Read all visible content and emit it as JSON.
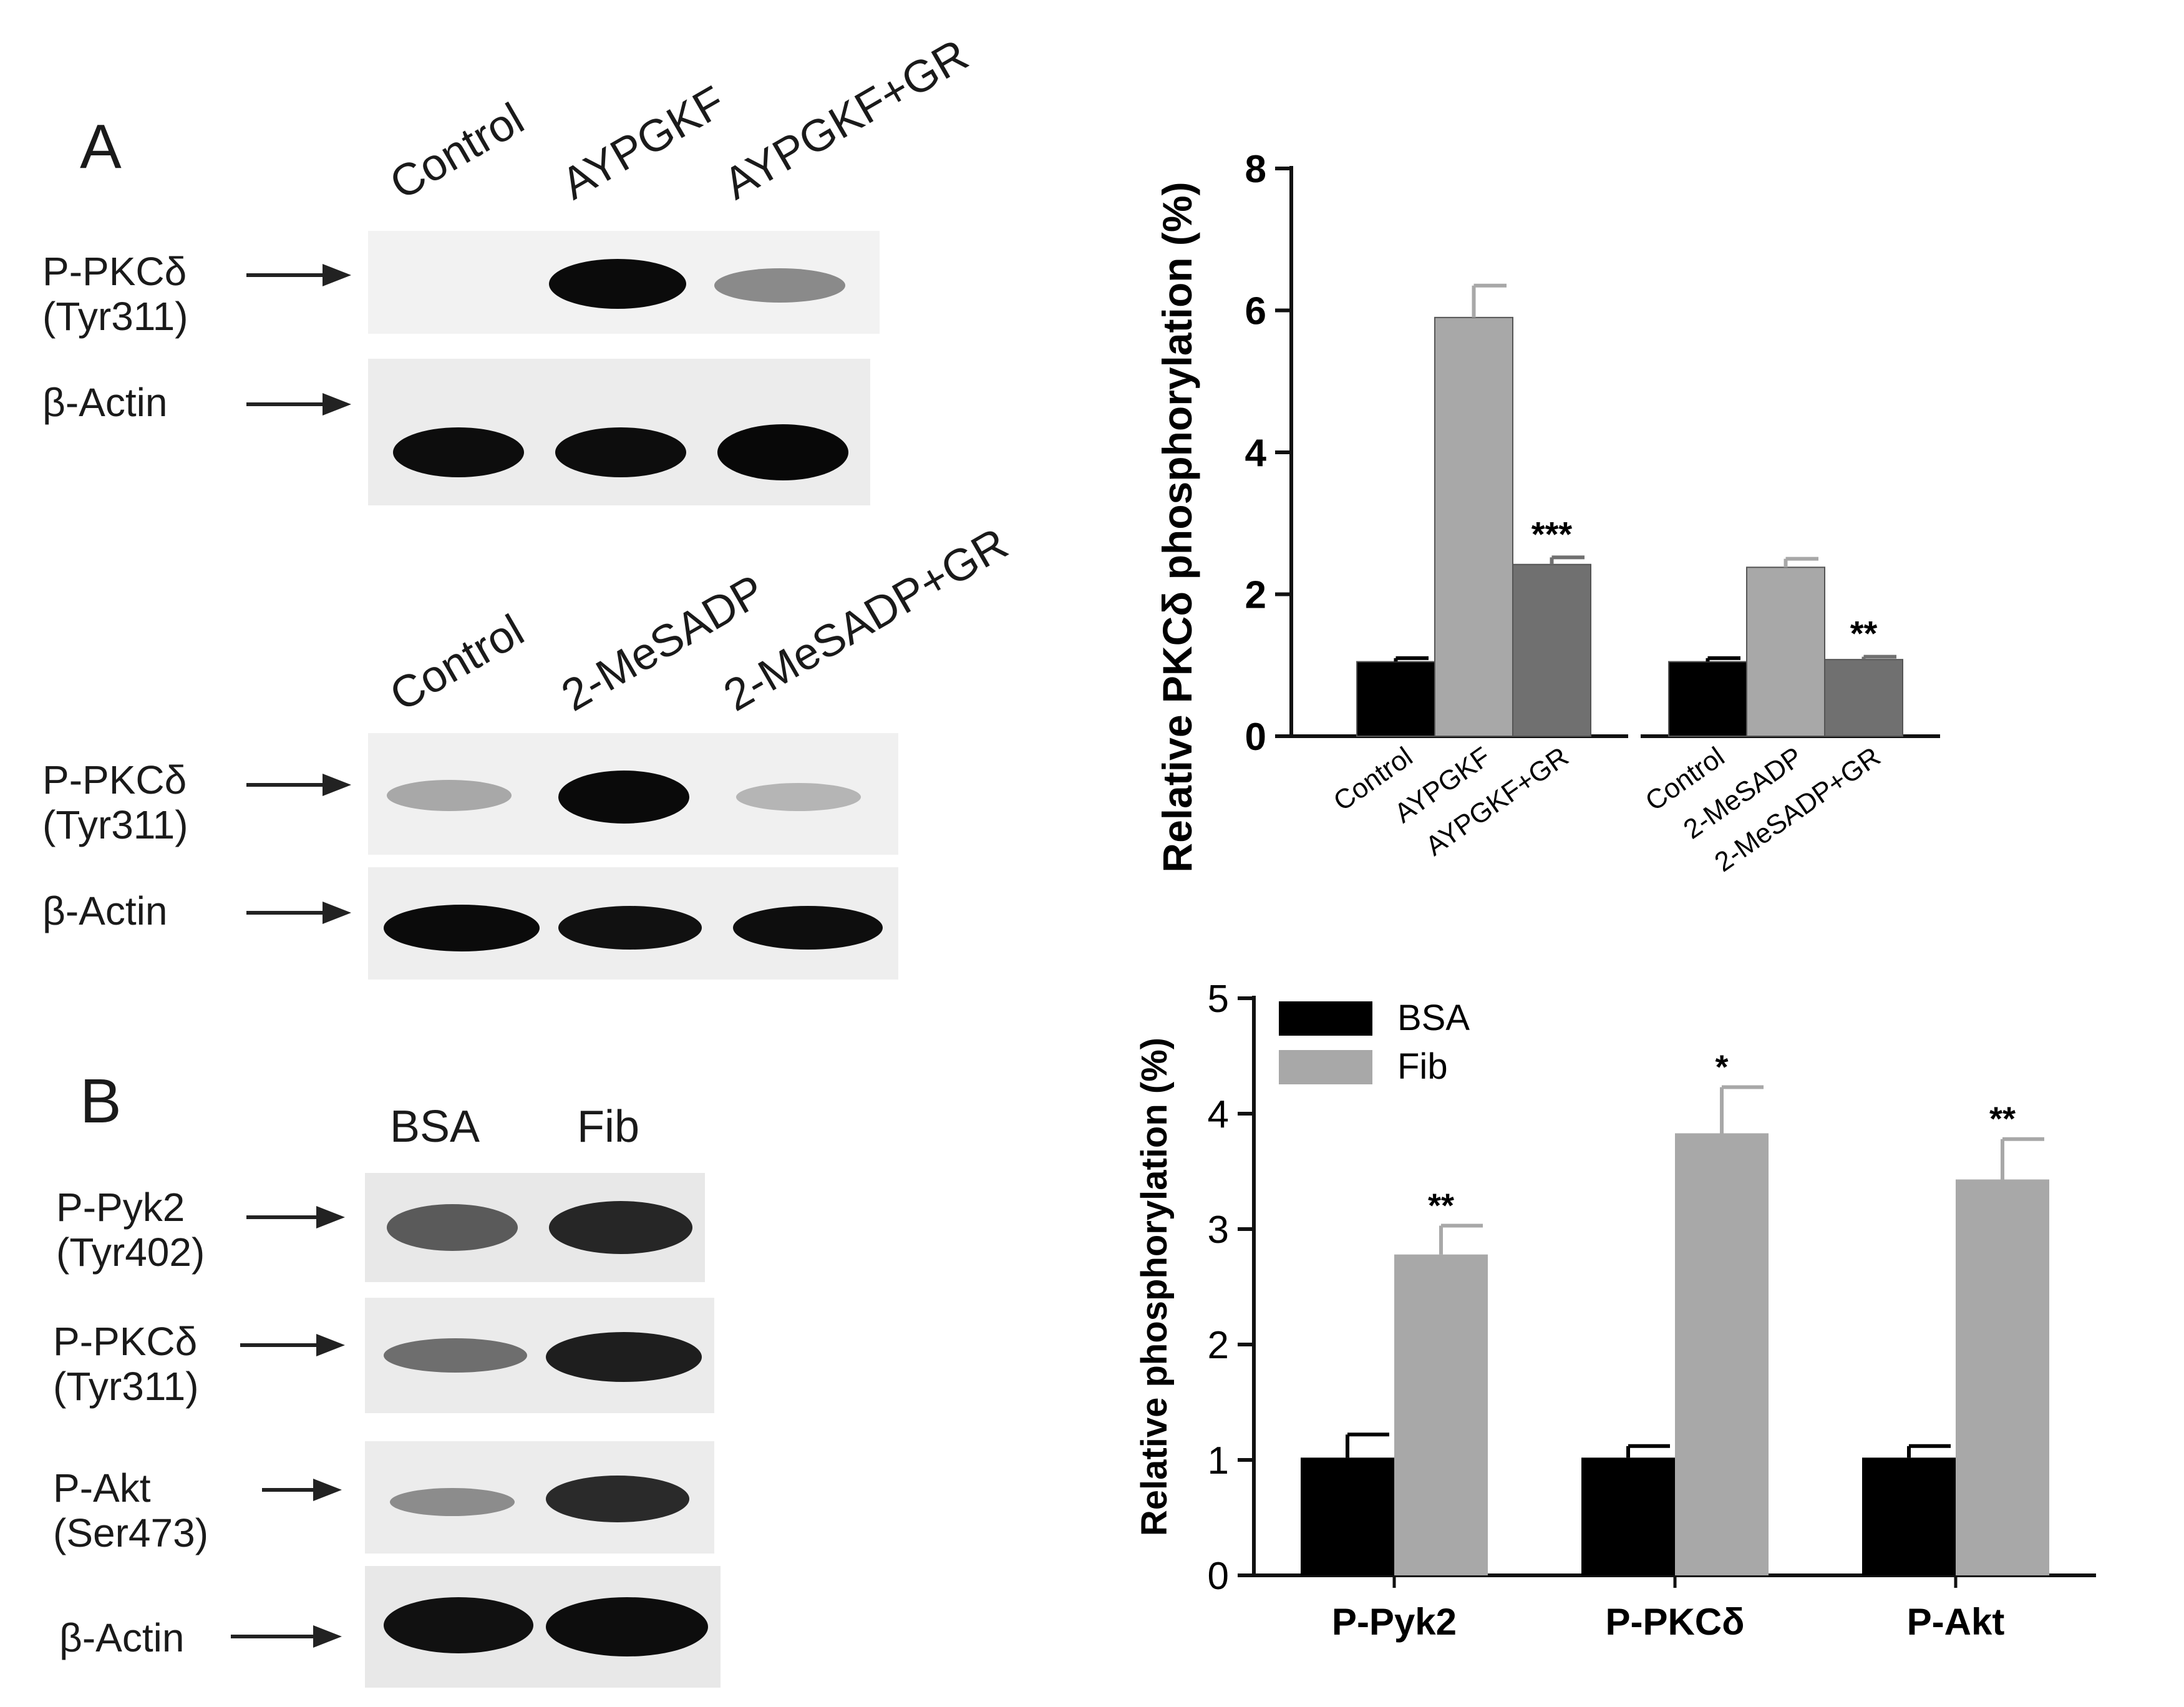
{
  "panel_a": {
    "letter": "A",
    "blot1": {
      "lanes": [
        "Control",
        "AYPGKF",
        "AYPGKF+GR"
      ],
      "rows": [
        {
          "label_line1": "P-PKCδ",
          "label_line2": "(Tyr311)"
        },
        {
          "label_line1": "β-Actin",
          "label_line2": ""
        }
      ]
    },
    "blot2": {
      "lanes": [
        "Control",
        "2-MeSADP",
        "2-MeSADP+GR"
      ],
      "rows": [
        {
          "label_line1": "P-PKCδ",
          "label_line2": "(Tyr311)"
        },
        {
          "label_line1": "β-Actin",
          "label_line2": ""
        }
      ]
    }
  },
  "panel_b": {
    "letter": "B",
    "lanes": [
      "BSA",
      "Fib"
    ],
    "rows": [
      {
        "label_line1": "P-Pyk2",
        "label_line2": "(Tyr402)"
      },
      {
        "label_line1": "P-PKCδ",
        "label_line2": "(Tyr311)"
      },
      {
        "label_line1": "P-Akt",
        "label_line2": "(Ser473)"
      },
      {
        "label_line1": "β-Actin",
        "label_line2": ""
      }
    ]
  },
  "chart_data": [
    {
      "type": "bar",
      "title": "",
      "xlabel": "",
      "ylabel": "Relative PKCδ phosphorylation (%)",
      "ylim": [
        0,
        8
      ],
      "yticks": [
        0,
        2,
        4,
        6,
        8
      ],
      "categories": [
        "Control",
        "AYPGKF",
        "AYPGKF+GR",
        "Control",
        "2-MeSADP",
        "2-MeSADP+GR"
      ],
      "values": [
        1.05,
        5.9,
        2.42,
        1.05,
        2.38,
        1.08
      ],
      "errors": [
        0.05,
        0.45,
        0.1,
        0.05,
        0.12,
        0.04
      ],
      "annotations": [
        "",
        "",
        "***",
        "",
        "",
        "**"
      ],
      "bar_colors": [
        "#000000",
        "#a8a8a8",
        "#707070",
        "#000000",
        "#a8a8a8",
        "#707070"
      ],
      "grid": false,
      "legend": "none"
    },
    {
      "type": "bar",
      "title": "",
      "xlabel": "",
      "ylabel": "Relative phosphorylation (%)",
      "ylim": [
        0,
        5
      ],
      "yticks": [
        0,
        1,
        2,
        3,
        4,
        5
      ],
      "categories": [
        "P-Pyk2",
        "P-PKCδ",
        "P-Akt"
      ],
      "series": [
        {
          "name": "BSA",
          "color": "#000000",
          "values": [
            1.02,
            1.02,
            1.02
          ],
          "errors": [
            0.2,
            0.1,
            0.1
          ]
        },
        {
          "name": "Fib",
          "color": "#a8a8a8",
          "values": [
            2.78,
            3.83,
            3.43
          ],
          "errors": [
            0.25,
            0.4,
            0.35
          ]
        }
      ],
      "annotations": [
        "**",
        "*",
        "**"
      ],
      "grid": false,
      "legend": "top-left"
    }
  ]
}
